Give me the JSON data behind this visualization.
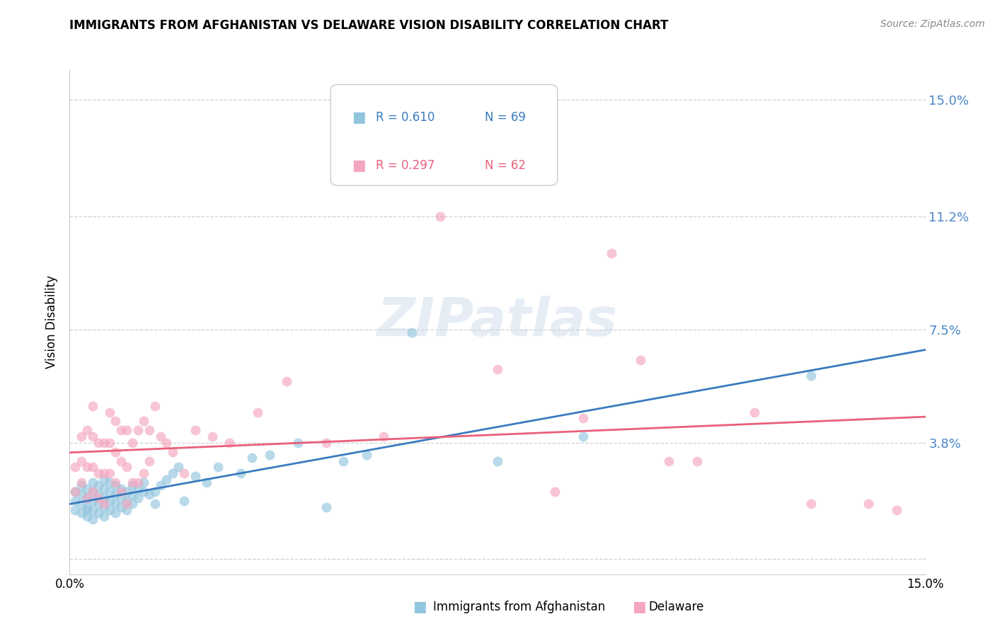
{
  "title": "IMMIGRANTS FROM AFGHANISTAN VS DELAWARE VISION DISABILITY CORRELATION CHART",
  "source": "Source: ZipAtlas.com",
  "ylabel": "Vision Disability",
  "yticks": [
    0.0,
    0.038,
    0.075,
    0.112,
    0.15
  ],
  "ytick_labels": [
    "",
    "3.8%",
    "7.5%",
    "11.2%",
    "15.0%"
  ],
  "xlim": [
    0.0,
    0.15
  ],
  "ylim": [
    -0.005,
    0.16
  ],
  "blue_color": "#92c5de",
  "pink_color": "#f4a6be",
  "blue_line_color": "#3a7bbf",
  "pink_line_color": "#e8607a",
  "legend_label1": "Immigrants from Afghanistan",
  "legend_label2": "Delaware",
  "watermark": "ZIPatlas",
  "blue_scatter_x": [
    0.001,
    0.001,
    0.001,
    0.002,
    0.002,
    0.002,
    0.002,
    0.003,
    0.003,
    0.003,
    0.003,
    0.003,
    0.004,
    0.004,
    0.004,
    0.004,
    0.004,
    0.005,
    0.005,
    0.005,
    0.005,
    0.006,
    0.006,
    0.006,
    0.006,
    0.006,
    0.007,
    0.007,
    0.007,
    0.007,
    0.008,
    0.008,
    0.008,
    0.008,
    0.009,
    0.009,
    0.009,
    0.01,
    0.01,
    0.01,
    0.011,
    0.011,
    0.011,
    0.012,
    0.012,
    0.013,
    0.013,
    0.014,
    0.015,
    0.015,
    0.016,
    0.017,
    0.018,
    0.019,
    0.02,
    0.022,
    0.024,
    0.026,
    0.03,
    0.032,
    0.035,
    0.04,
    0.045,
    0.048,
    0.052,
    0.06,
    0.075,
    0.09,
    0.13
  ],
  "blue_scatter_y": [
    0.016,
    0.019,
    0.022,
    0.015,
    0.018,
    0.021,
    0.024,
    0.014,
    0.017,
    0.02,
    0.023,
    0.016,
    0.013,
    0.016,
    0.019,
    0.022,
    0.025,
    0.015,
    0.018,
    0.021,
    0.024,
    0.014,
    0.017,
    0.02,
    0.023,
    0.026,
    0.016,
    0.019,
    0.022,
    0.025,
    0.015,
    0.018,
    0.021,
    0.024,
    0.017,
    0.02,
    0.023,
    0.016,
    0.019,
    0.022,
    0.018,
    0.021,
    0.024,
    0.02,
    0.023,
    0.022,
    0.025,
    0.021,
    0.018,
    0.022,
    0.024,
    0.026,
    0.028,
    0.03,
    0.019,
    0.027,
    0.025,
    0.03,
    0.028,
    0.033,
    0.034,
    0.038,
    0.017,
    0.032,
    0.034,
    0.074,
    0.032,
    0.04,
    0.06
  ],
  "pink_scatter_x": [
    0.001,
    0.001,
    0.002,
    0.002,
    0.002,
    0.003,
    0.003,
    0.003,
    0.004,
    0.004,
    0.004,
    0.004,
    0.005,
    0.005,
    0.005,
    0.006,
    0.006,
    0.006,
    0.007,
    0.007,
    0.007,
    0.008,
    0.008,
    0.008,
    0.009,
    0.009,
    0.009,
    0.01,
    0.01,
    0.01,
    0.011,
    0.011,
    0.012,
    0.012,
    0.013,
    0.013,
    0.014,
    0.014,
    0.015,
    0.016,
    0.017,
    0.018,
    0.02,
    0.022,
    0.025,
    0.028,
    0.033,
    0.038,
    0.045,
    0.055,
    0.065,
    0.075,
    0.085,
    0.09,
    0.095,
    0.1,
    0.105,
    0.11,
    0.12,
    0.13,
    0.14,
    0.145
  ],
  "pink_scatter_y": [
    0.022,
    0.03,
    0.025,
    0.032,
    0.04,
    0.02,
    0.03,
    0.042,
    0.022,
    0.03,
    0.04,
    0.05,
    0.02,
    0.028,
    0.038,
    0.018,
    0.028,
    0.038,
    0.028,
    0.038,
    0.048,
    0.025,
    0.035,
    0.045,
    0.022,
    0.032,
    0.042,
    0.018,
    0.03,
    0.042,
    0.025,
    0.038,
    0.025,
    0.042,
    0.028,
    0.045,
    0.032,
    0.042,
    0.05,
    0.04,
    0.038,
    0.035,
    0.028,
    0.042,
    0.04,
    0.038,
    0.048,
    0.058,
    0.038,
    0.04,
    0.112,
    0.062,
    0.022,
    0.046,
    0.1,
    0.065,
    0.032,
    0.032,
    0.048,
    0.018,
    0.018,
    0.016
  ]
}
